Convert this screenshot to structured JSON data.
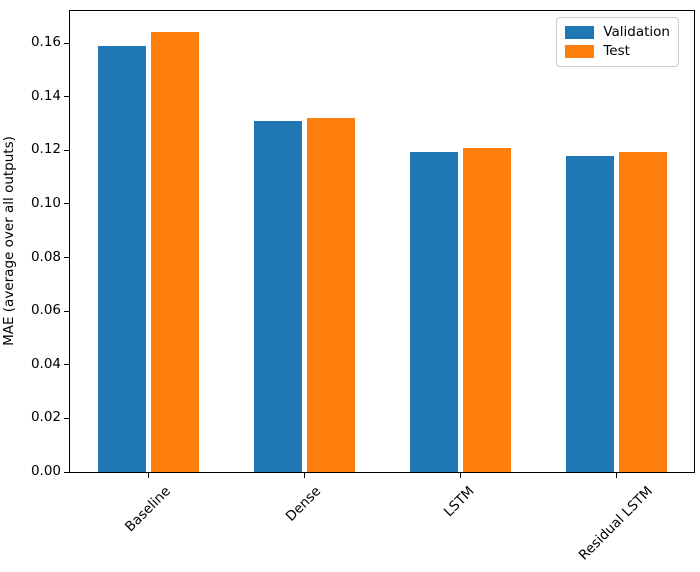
{
  "chart_data": {
    "type": "bar",
    "title": "",
    "xlabel": "",
    "ylabel": "MAE (average over all outputs)",
    "categories": [
      "Baseline",
      "Dense",
      "LSTM",
      "Residual LSTM"
    ],
    "series": [
      {
        "name": "Validation",
        "color": "#1f77b4",
        "values": [
          0.159,
          0.131,
          0.1195,
          0.118
        ]
      },
      {
        "name": "Test",
        "color": "#ff7f0e",
        "values": [
          0.164,
          0.132,
          0.121,
          0.1195
        ]
      }
    ],
    "ylim": [
      0,
      0.172
    ],
    "yticks": [
      0.0,
      0.02,
      0.04,
      0.06,
      0.08,
      0.1,
      0.12,
      0.14,
      0.16
    ],
    "ytick_labels": [
      "0.00",
      "0.02",
      "0.04",
      "0.06",
      "0.08",
      "0.10",
      "0.12",
      "0.14",
      "0.16"
    ],
    "xtick_rotation_deg": 45,
    "grid": false,
    "legend": {
      "position": "upper right",
      "entries": [
        "Validation",
        "Test"
      ]
    },
    "colors": {
      "background": "#ffffff",
      "axis": "#000000",
      "legend_border": "#cccccc"
    }
  }
}
